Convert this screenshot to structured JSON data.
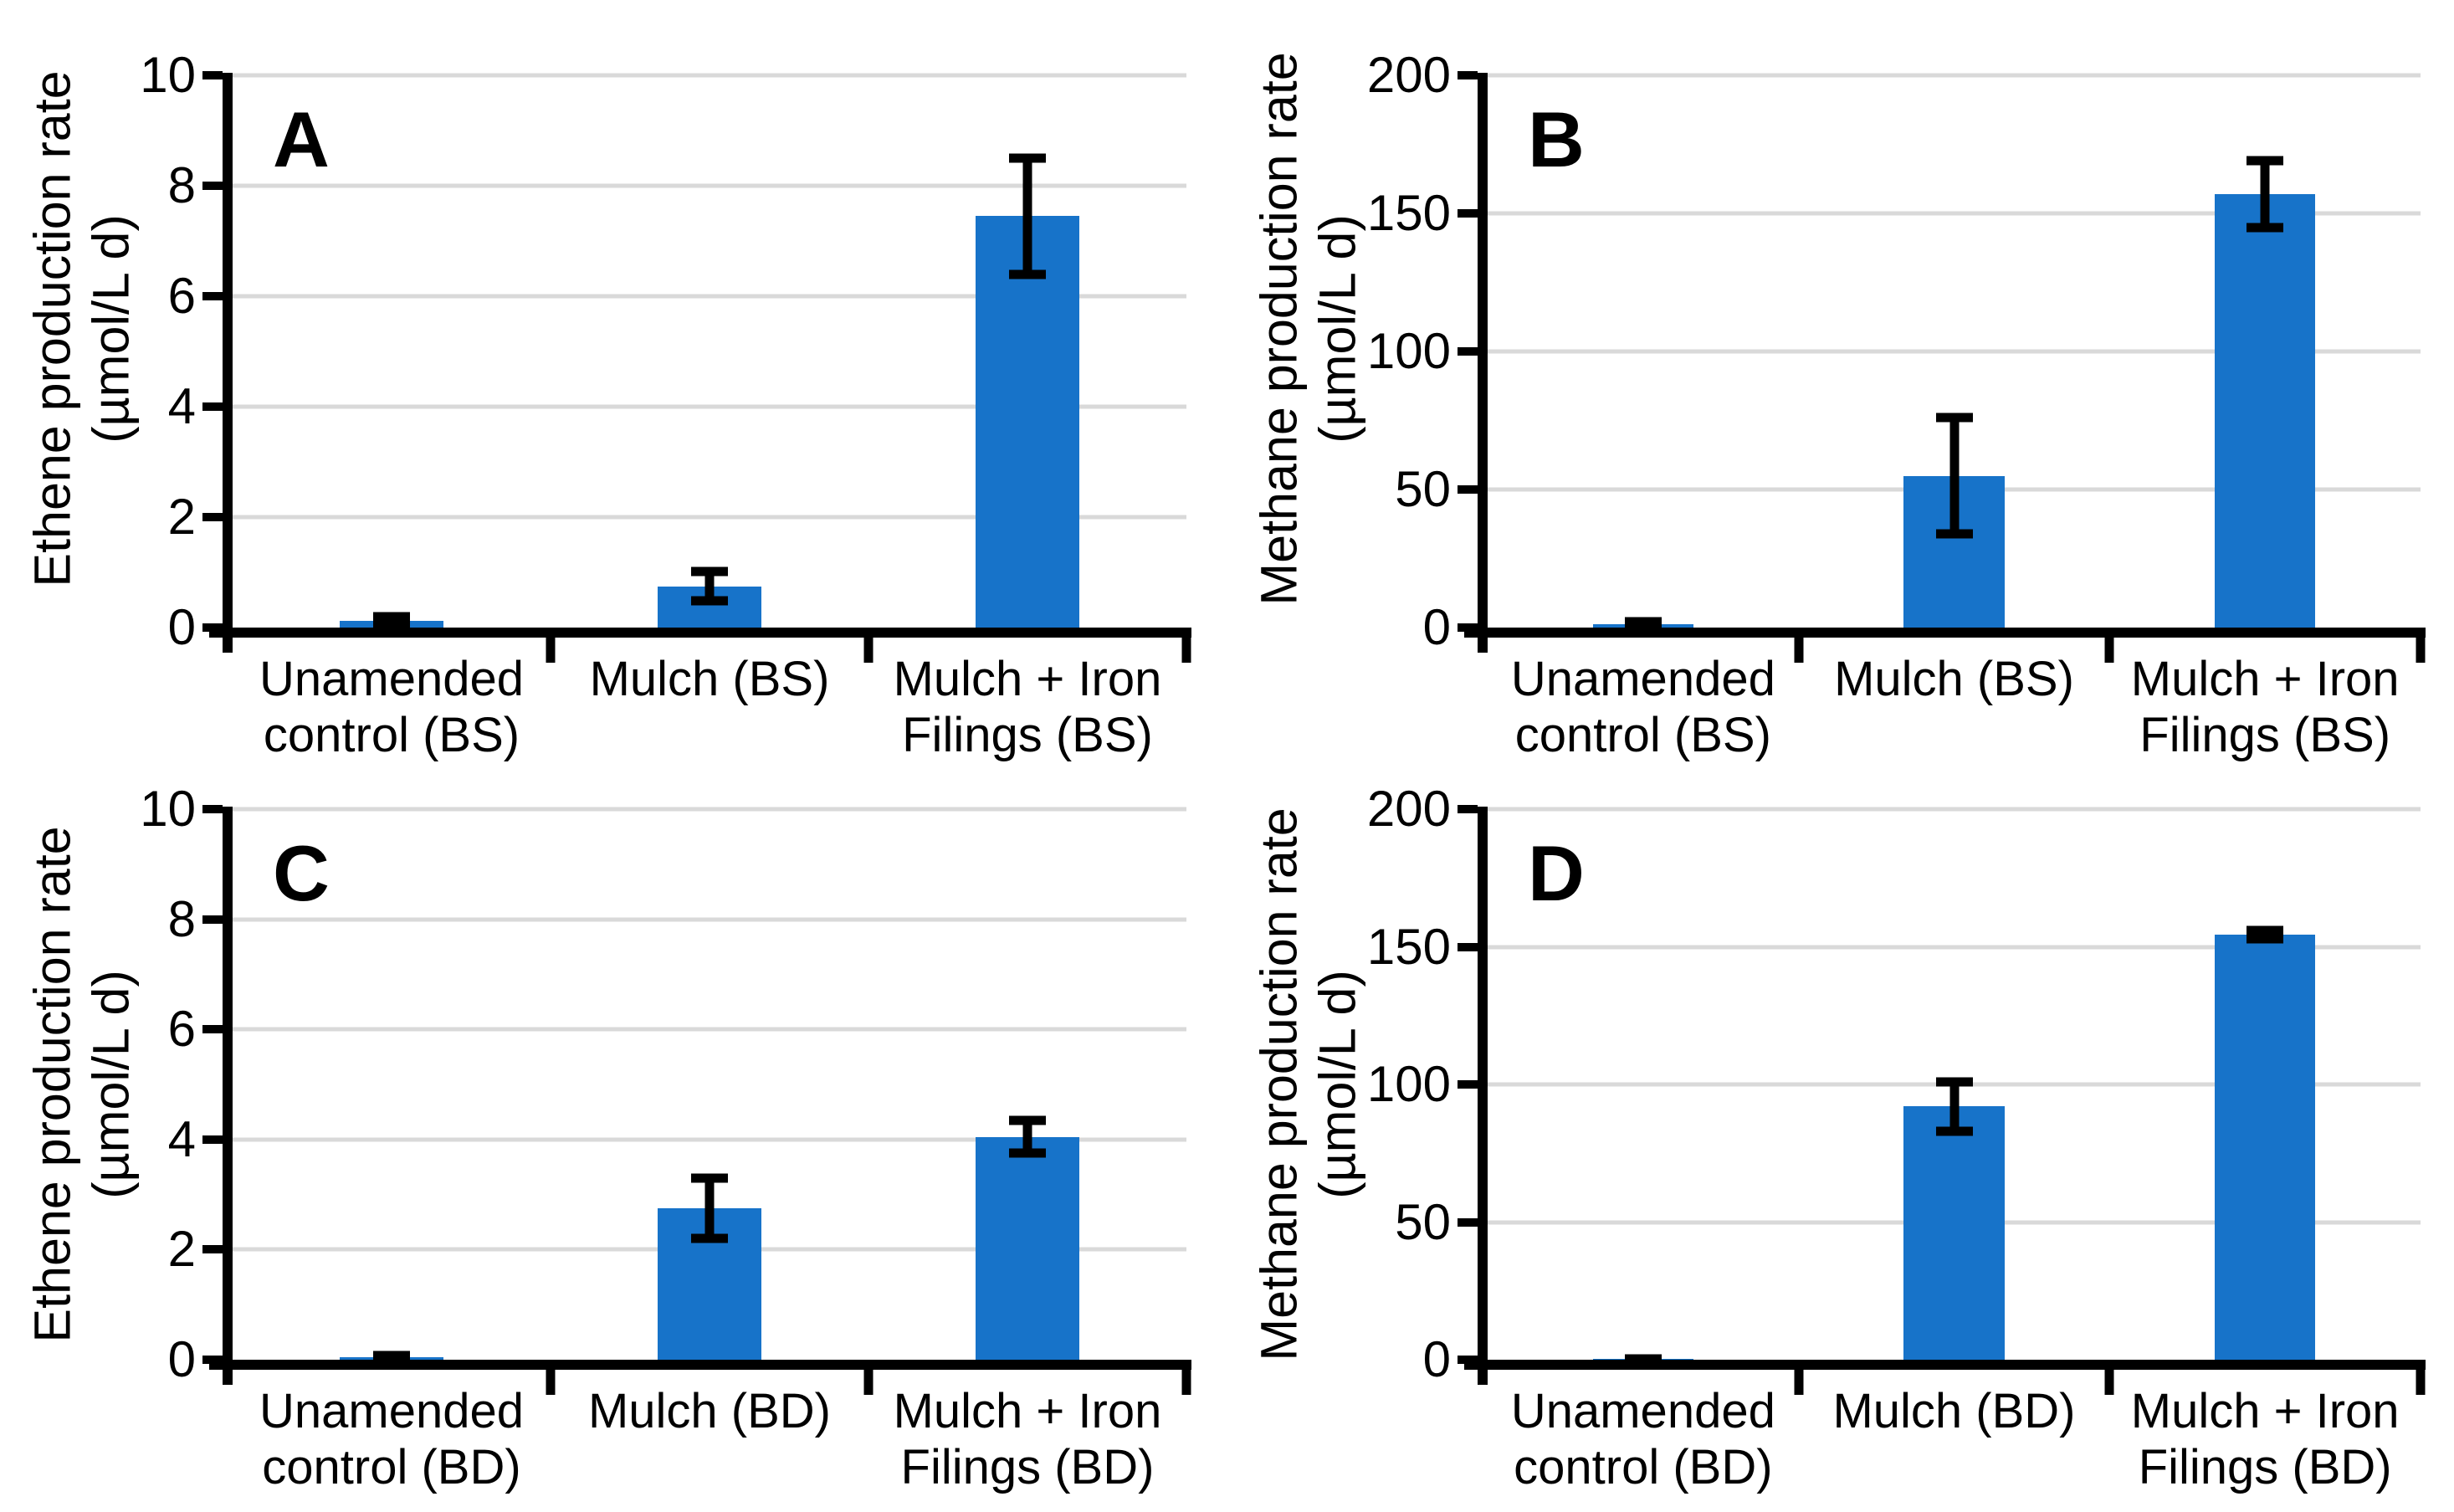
{
  "figure": {
    "background": "#FFFFFF",
    "panel_letters": [
      "A",
      "B",
      "C",
      "D"
    ]
  },
  "colors": {
    "bar_fill": "#1773C9",
    "gridline": "#D9D9D9",
    "axis_and_error_bars": "#000000",
    "text": "#000000"
  },
  "chart_data": [
    {
      "type": "bar",
      "panel": "A",
      "ylabel_lines": [
        "Ethene production rate",
        "(µmol/L d)"
      ],
      "ylabel": "Ethene production rate (µmol/L d)",
      "ylim": [
        0,
        10
      ],
      "yticks": [
        0,
        2,
        4,
        6,
        8,
        10
      ],
      "grid": true,
      "legend": "none",
      "categories": [
        [
          "Unamended",
          "control (BS)"
        ],
        [
          "Mulch (BS)"
        ],
        [
          "Mulch + Iron",
          "Filings (BS)"
        ]
      ],
      "values": [
        0.12,
        0.75,
        7.45
      ],
      "errors": [
        0.07,
        0.27,
        1.05
      ]
    },
    {
      "type": "bar",
      "panel": "B",
      "ylabel_lines": [
        "Methane production rate",
        "(µmol/L d)"
      ],
      "ylabel": "Methane production rate (µmol/L d)",
      "ylim": [
        0,
        200
      ],
      "yticks": [
        0,
        50,
        100,
        150,
        200
      ],
      "grid": true,
      "legend": "none",
      "categories": [
        [
          "Unamended",
          "control (BS)"
        ],
        [
          "Mulch (BS)"
        ],
        [
          "Mulch + Iron",
          "Filings (BS)"
        ]
      ],
      "values": [
        1.3,
        55,
        157
      ],
      "errors": [
        0.9,
        21,
        12
      ]
    },
    {
      "type": "bar",
      "panel": "C",
      "ylabel_lines": [
        "Ethene production rate",
        "(µmol/L d)"
      ],
      "ylabel": "Ethene production rate (µmol/L d)",
      "ylim": [
        0,
        10
      ],
      "yticks": [
        0,
        2,
        4,
        6,
        8,
        10
      ],
      "grid": true,
      "legend": "none",
      "categories": [
        [
          "Unamended",
          "control (BD)"
        ],
        [
          "Mulch (BD)"
        ],
        [
          "Mulch + Iron",
          "Filings (BD)"
        ]
      ],
      "values": [
        0.05,
        2.75,
        4.05
      ],
      "errors": [
        0.03,
        0.55,
        0.3
      ]
    },
    {
      "type": "bar",
      "panel": "D",
      "ylabel_lines": [
        "Methane production rate",
        "(µmol/L d)"
      ],
      "ylabel": "Methane production rate (µmol/L d)",
      "ylim": [
        0,
        200
      ],
      "yticks": [
        0,
        50,
        100,
        150,
        200
      ],
      "grid": true,
      "legend": "none",
      "categories": [
        [
          "Unamended",
          "control (BD)"
        ],
        [
          "Mulch (BD)"
        ],
        [
          "Mulch + Iron",
          "Filings (BD)"
        ]
      ],
      "values": [
        0.3,
        92,
        154.5
      ],
      "errors": [
        0.15,
        9,
        1.5
      ]
    }
  ]
}
